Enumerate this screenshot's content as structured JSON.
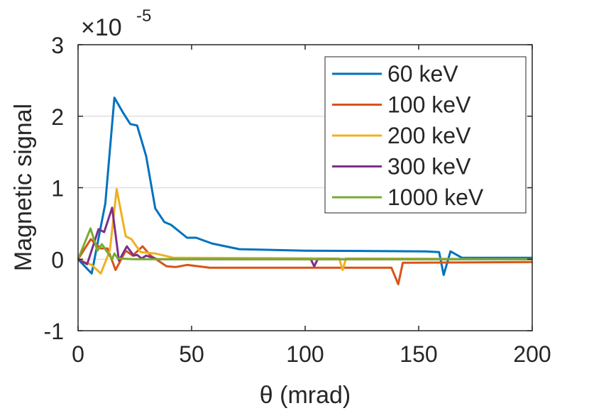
{
  "chart_data": {
    "type": "line",
    "title": "",
    "xlabel": "θ (mrad)",
    "ylabel": "Magnetic signal",
    "y_exponent_label": "×10",
    "y_exponent": "-5",
    "xlim": [
      0,
      200
    ],
    "ylim": [
      -1,
      3
    ],
    "xticks": [
      0,
      50,
      100,
      150,
      200
    ],
    "yticks": [
      -1,
      0,
      1,
      2,
      3
    ],
    "grid": "horizontal",
    "legend_position": "top-right",
    "series": [
      {
        "name": "60 keV",
        "color": "#0072BD",
        "x": [
          0,
          6,
          12,
          16,
          20,
          23,
          26,
          30,
          34,
          38,
          41,
          48,
          52,
          59,
          71,
          100,
          153,
          159,
          161,
          164,
          169,
          200
        ],
        "y": [
          0,
          -0.2,
          0.78,
          2.26,
          2.04,
          1.89,
          1.87,
          1.44,
          0.71,
          0.52,
          0.48,
          0.3,
          0.3,
          0.22,
          0.14,
          0.12,
          0.11,
          0.1,
          -0.22,
          0.11,
          0.02,
          0.02
        ]
      },
      {
        "name": "100 keV",
        "color": "#D95319",
        "x": [
          0,
          5.6,
          10,
          13,
          16.5,
          21,
          24,
          28.4,
          32,
          39,
          43,
          48,
          58,
          138,
          141,
          143,
          200
        ],
        "y": [
          0,
          0.28,
          0.15,
          0.15,
          -0.15,
          0.12,
          0.05,
          0.18,
          0.05,
          -0.1,
          -0.11,
          -0.08,
          -0.12,
          -0.12,
          -0.35,
          -0.05,
          -0.04
        ]
      },
      {
        "name": "200 keV",
        "color": "#EDB120",
        "x": [
          0,
          6,
          10,
          14,
          17,
          21,
          23.5,
          27.5,
          34,
          42,
          115,
          116.5,
          118,
          200
        ],
        "y": [
          0,
          -0.08,
          -0.2,
          0.12,
          0.98,
          0.32,
          0.28,
          0.1,
          0.08,
          0.02,
          0.01,
          -0.15,
          0.01,
          0.0
        ]
      },
      {
        "name": "300 keV",
        "color": "#7E2F8E",
        "x": [
          0,
          4,
          9,
          11.5,
          15,
          18,
          21.5,
          24.5,
          26,
          28,
          30,
          35,
          102.5,
          104,
          105.5,
          200
        ],
        "y": [
          0,
          -0.07,
          0.42,
          0.38,
          0.72,
          -0.02,
          0.18,
          0.05,
          0.06,
          0.01,
          0.05,
          0.0,
          0.0,
          -0.1,
          0.0,
          0.0
        ]
      },
      {
        "name": "1000 keV",
        "color": "#77AC30",
        "x": [
          0,
          5.5,
          8.5,
          10.5,
          15,
          16,
          17.5,
          25,
          200
        ],
        "y": [
          0,
          0.43,
          0.12,
          0.21,
          0.0,
          0.08,
          0.01,
          0.0,
          0.0
        ]
      }
    ]
  }
}
